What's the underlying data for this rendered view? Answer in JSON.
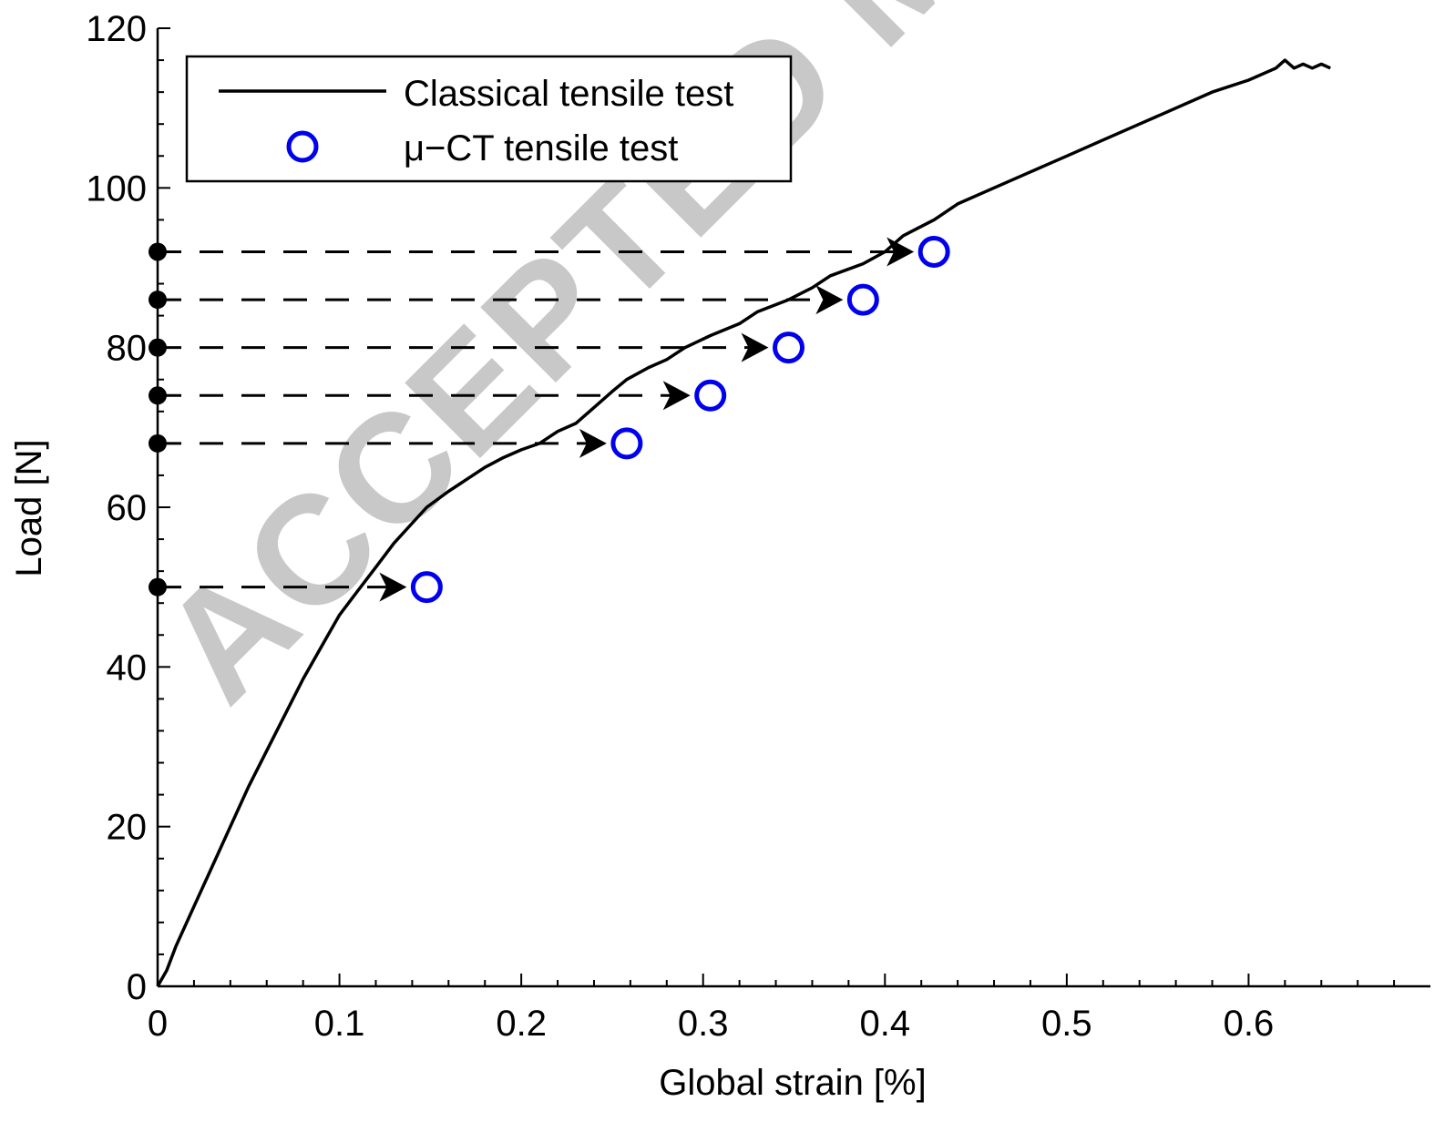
{
  "chart_data": {
    "type": "line",
    "title": "",
    "xlabel": "Global strain [%]",
    "ylabel": "Load [N]",
    "xlim": [
      0,
      0.7
    ],
    "ylim": [
      0,
      120
    ],
    "x_ticks": [
      0,
      0.1,
      0.2,
      0.3,
      0.4,
      0.5,
      0.6
    ],
    "x_tick_labels": [
      "0",
      "0.1",
      "0.2",
      "0.3",
      "0.4",
      "0.5",
      "0.6"
    ],
    "y_ticks": [
      0,
      20,
      40,
      60,
      80,
      100,
      120
    ],
    "y_tick_labels": [
      "0",
      "20",
      "40",
      "60",
      "80",
      "100",
      "120"
    ],
    "grid": false,
    "legend_position": "top-left",
    "colors": {
      "line": "#000000",
      "marker": "#0000ee",
      "dash": "#000000",
      "watermark": "#c8c8c8"
    },
    "series": [
      {
        "name": "Classical tensile test",
        "style": "solid-line",
        "x": [
          0,
          0.005,
          0.01,
          0.02,
          0.03,
          0.04,
          0.05,
          0.06,
          0.07,
          0.08,
          0.09,
          0.1,
          0.11,
          0.12,
          0.13,
          0.14,
          0.148,
          0.16,
          0.17,
          0.18,
          0.19,
          0.2,
          0.21,
          0.22,
          0.23,
          0.24,
          0.25,
          0.258,
          0.27,
          0.28,
          0.29,
          0.304,
          0.32,
          0.33,
          0.347,
          0.36,
          0.37,
          0.388,
          0.4,
          0.41,
          0.427,
          0.44,
          0.46,
          0.48,
          0.5,
          0.52,
          0.54,
          0.56,
          0.58,
          0.6,
          0.615,
          0.62,
          0.625,
          0.63,
          0.635,
          0.64,
          0.645
        ],
        "y": [
          0,
          2,
          5,
          10,
          15,
          20,
          25,
          29.5,
          34,
          38.5,
          42.5,
          46.5,
          49.5,
          52.5,
          55.5,
          58,
          60,
          62,
          63.5,
          65,
          66.2,
          67.2,
          68.0,
          69.5,
          70.5,
          72.5,
          74.5,
          76.0,
          77.5,
          78.5,
          80.0,
          81.5,
          83.0,
          84.5,
          86.0,
          87.5,
          89.0,
          90.5,
          92.0,
          94.0,
          96.0,
          98.0,
          100.0,
          102.0,
          104.0,
          106.0,
          108.0,
          110.0,
          112.0,
          113.5,
          115.0,
          116.0,
          115.0,
          115.5,
          115.0,
          115.5,
          115.0
        ]
      },
      {
        "name": "μ−CT tensile test",
        "style": "open-circle-markers",
        "x": [
          0.148,
          0.258,
          0.304,
          0.347,
          0.388,
          0.427
        ],
        "y": [
          50,
          68,
          74,
          80,
          86,
          92
        ]
      }
    ],
    "annotations": {
      "dashed_arrows": [
        {
          "from_x": 0,
          "to_x": 0.148,
          "y": 50
        },
        {
          "from_x": 0,
          "to_x": 0.258,
          "y": 68
        },
        {
          "from_x": 0,
          "to_x": 0.304,
          "y": 74
        },
        {
          "from_x": 0,
          "to_x": 0.347,
          "y": 80
        },
        {
          "from_x": 0,
          "to_x": 0.388,
          "y": 86
        },
        {
          "from_x": 0,
          "to_x": 0.427,
          "y": 92
        }
      ]
    },
    "watermark": "ACCEPTED MANUSCRIPT"
  }
}
